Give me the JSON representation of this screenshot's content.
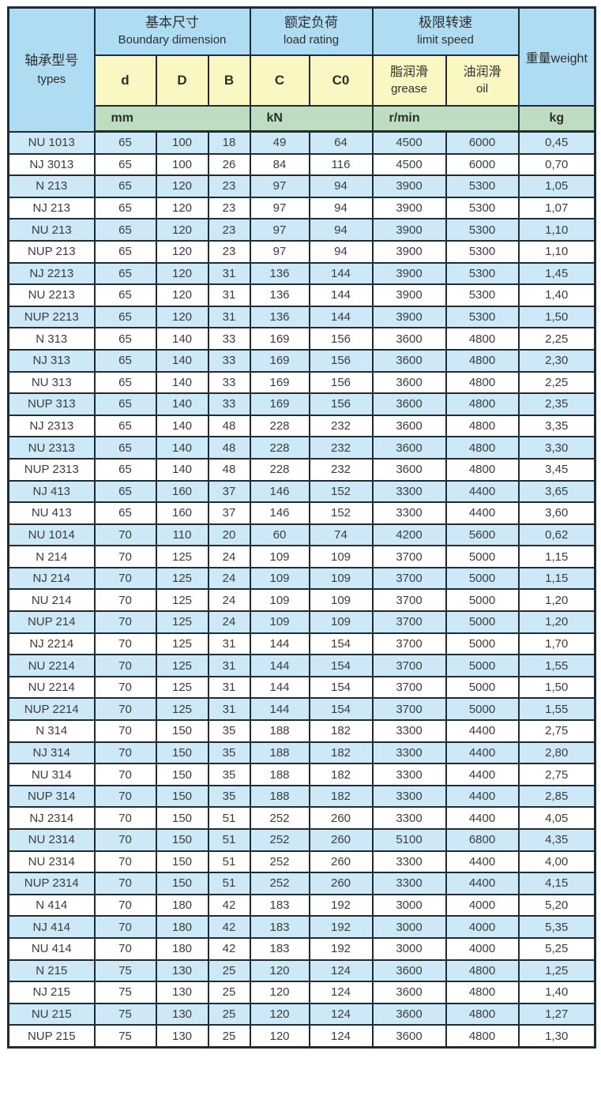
{
  "colors": {
    "header_blue": "#aedcf2",
    "subheader_yellow": "#fbf7c2",
    "unit_green": "#bedcc0",
    "row_alt_blue": "#cde9f8",
    "row_white": "#ffffff",
    "border_dark": "#222a33",
    "text_dark": "#3c3c3c"
  },
  "table": {
    "type_header": {
      "zh": "轴承型号",
      "en": "types"
    },
    "groups": [
      {
        "zh": "基本尺寸",
        "en": "Boundary dimension"
      },
      {
        "zh": "额定负荷",
        "en": "load rating"
      },
      {
        "zh": "极限转速",
        "en": "limit speed"
      }
    ],
    "weight_header": "重量weight",
    "sub_columns": {
      "d": "d",
      "D": "D",
      "B": "B",
      "C": "C",
      "C0": "C0",
      "grease_zh": "脂润滑",
      "grease_en": "grease",
      "oil_zh": "油润滑",
      "oil_en": "oil"
    },
    "units": {
      "mm": "mm",
      "kn": "kN",
      "rmin": "r/min",
      "kg": "kg"
    },
    "rows": [
      [
        "NU 1013",
        "65",
        "100",
        "18",
        "49",
        "64",
        "4500",
        "6000",
        "0,45"
      ],
      [
        "NJ 3013",
        "65",
        "100",
        "26",
        "84",
        "116",
        "4500",
        "6000",
        "0,70"
      ],
      [
        "N 213",
        "65",
        "120",
        "23",
        "97",
        "94",
        "3900",
        "5300",
        "1,05"
      ],
      [
        "NJ 213",
        "65",
        "120",
        "23",
        "97",
        "94",
        "3900",
        "5300",
        "1,07"
      ],
      [
        "NU 213",
        "65",
        "120",
        "23",
        "97",
        "94",
        "3900",
        "5300",
        "1,10"
      ],
      [
        "NUP 213",
        "65",
        "120",
        "23",
        "97",
        "94",
        "3900",
        "5300",
        "1,10"
      ],
      [
        "NJ 2213",
        "65",
        "120",
        "31",
        "136",
        "144",
        "3900",
        "5300",
        "1,45"
      ],
      [
        "NU 2213",
        "65",
        "120",
        "31",
        "136",
        "144",
        "3900",
        "5300",
        "1,40"
      ],
      [
        "NUP 2213",
        "65",
        "120",
        "31",
        "136",
        "144",
        "3900",
        "5300",
        "1,50"
      ],
      [
        "N 313",
        "65",
        "140",
        "33",
        "169",
        "156",
        "3600",
        "4800",
        "2,25"
      ],
      [
        "NJ 313",
        "65",
        "140",
        "33",
        "169",
        "156",
        "3600",
        "4800",
        "2,30"
      ],
      [
        "NU 313",
        "65",
        "140",
        "33",
        "169",
        "156",
        "3600",
        "4800",
        "2,25"
      ],
      [
        "NUP 313",
        "65",
        "140",
        "33",
        "169",
        "156",
        "3600",
        "4800",
        "2,35"
      ],
      [
        "NJ 2313",
        "65",
        "140",
        "48",
        "228",
        "232",
        "3600",
        "4800",
        "3,35"
      ],
      [
        "NU 2313",
        "65",
        "140",
        "48",
        "228",
        "232",
        "3600",
        "4800",
        "3,30"
      ],
      [
        "NUP 2313",
        "65",
        "140",
        "48",
        "228",
        "232",
        "3600",
        "4800",
        "3,45"
      ],
      [
        "NJ 413",
        "65",
        "160",
        "37",
        "146",
        "152",
        "3300",
        "4400",
        "3,65"
      ],
      [
        "NU 413",
        "65",
        "160",
        "37",
        "146",
        "152",
        "3300",
        "4400",
        "3,60"
      ],
      [
        "NU 1014",
        "70",
        "110",
        "20",
        "60",
        "74",
        "4200",
        "5600",
        "0,62"
      ],
      [
        "N 214",
        "70",
        "125",
        "24",
        "109",
        "109",
        "3700",
        "5000",
        "1,15"
      ],
      [
        "NJ 214",
        "70",
        "125",
        "24",
        "109",
        "109",
        "3700",
        "5000",
        "1,15"
      ],
      [
        "NU 214",
        "70",
        "125",
        "24",
        "109",
        "109",
        "3700",
        "5000",
        "1,20"
      ],
      [
        "NUP 214",
        "70",
        "125",
        "24",
        "109",
        "109",
        "3700",
        "5000",
        "1,20"
      ],
      [
        "NJ 2214",
        "70",
        "125",
        "31",
        "144",
        "154",
        "3700",
        "5000",
        "1,70"
      ],
      [
        "NU 2214",
        "70",
        "125",
        "31",
        "144",
        "154",
        "3700",
        "5000",
        "1,55"
      ],
      [
        "NU 2214",
        "70",
        "125",
        "31",
        "144",
        "154",
        "3700",
        "5000",
        "1,50"
      ],
      [
        "NUP 2214",
        "70",
        "125",
        "31",
        "144",
        "154",
        "3700",
        "5000",
        "1,55"
      ],
      [
        "N 314",
        "70",
        "150",
        "35",
        "188",
        "182",
        "3300",
        "4400",
        "2,75"
      ],
      [
        "NJ 314",
        "70",
        "150",
        "35",
        "188",
        "182",
        "3300",
        "4400",
        "2,80"
      ],
      [
        "NU 314",
        "70",
        "150",
        "35",
        "188",
        "182",
        "3300",
        "4400",
        "2,75"
      ],
      [
        "NUP 314",
        "70",
        "150",
        "35",
        "188",
        "182",
        "3300",
        "4400",
        "2,85"
      ],
      [
        "NJ 2314",
        "70",
        "150",
        "51",
        "252",
        "260",
        "3300",
        "4400",
        "4,05"
      ],
      [
        "NU 2314",
        "70",
        "150",
        "51",
        "252",
        "260",
        "5100",
        "6800",
        "4,35"
      ],
      [
        "NU 2314",
        "70",
        "150",
        "51",
        "252",
        "260",
        "3300",
        "4400",
        "4,00"
      ],
      [
        "NUP 2314",
        "70",
        "150",
        "51",
        "252",
        "260",
        "3300",
        "4400",
        "4,15"
      ],
      [
        "N 414",
        "70",
        "180",
        "42",
        "183",
        "192",
        "3000",
        "4000",
        "5,20"
      ],
      [
        "NJ 414",
        "70",
        "180",
        "42",
        "183",
        "192",
        "3000",
        "4000",
        "5,35"
      ],
      [
        "NU 414",
        "70",
        "180",
        "42",
        "183",
        "192",
        "3000",
        "4000",
        "5,25"
      ],
      [
        "N 215",
        "75",
        "130",
        "25",
        "120",
        "124",
        "3600",
        "4800",
        "1,25"
      ],
      [
        "NJ 215",
        "75",
        "130",
        "25",
        "120",
        "124",
        "3600",
        "4800",
        "1,40"
      ],
      [
        "NU 215",
        "75",
        "130",
        "25",
        "120",
        "124",
        "3600",
        "4800",
        "1,27"
      ],
      [
        "NUP 215",
        "75",
        "130",
        "25",
        "120",
        "124",
        "3600",
        "4800",
        "1,30"
      ]
    ]
  }
}
